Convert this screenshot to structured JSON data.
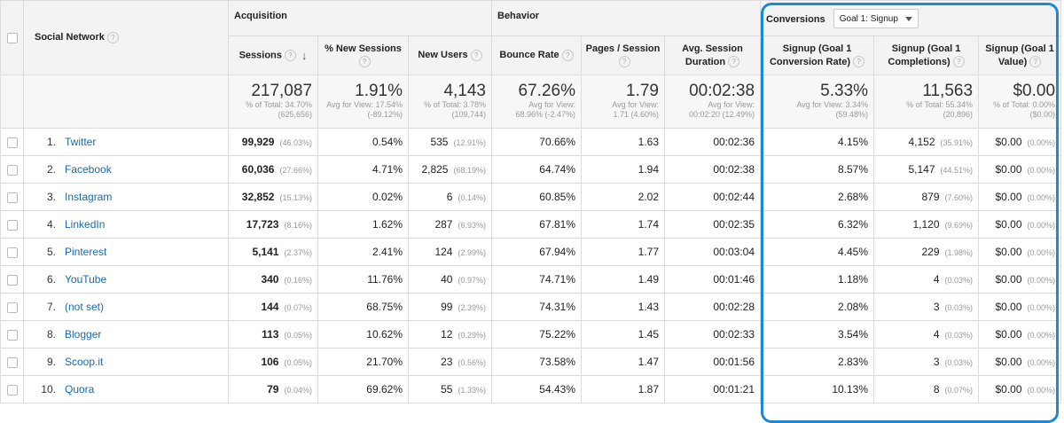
{
  "header": {
    "social_network": "Social Network",
    "groups": {
      "acquisition": "Acquisition",
      "behavior": "Behavior",
      "conversions": "Conversions"
    },
    "goal_select": "Goal 1: Signup",
    "columns": {
      "sessions": "Sessions",
      "new_sessions": "% New Sessions",
      "new_users": "New Users",
      "bounce_rate": "Bounce Rate",
      "pages_session": "Pages / Session",
      "avg_duration": "Avg. Session Duration",
      "conv_rate": "Signup (Goal 1 Conversion Rate)",
      "completions": "Signup (Goal 1 Completions)",
      "value": "Signup (Goal 1 Value)"
    }
  },
  "totals": {
    "sessions": {
      "value": "217,087",
      "l1": "% of Total: 34.70%",
      "l2": "(625,656)"
    },
    "new_sessions": {
      "value": "1.91%",
      "l1": "Avg for View: 17.54%",
      "l2": "(-89.12%)"
    },
    "new_users": {
      "value": "4,143",
      "l1": "% of Total: 3.78%",
      "l2": "(109,744)"
    },
    "bounce_rate": {
      "value": "67.26%",
      "l1": "Avg for View:",
      "l2": "68.96% (-2.47%)"
    },
    "pages_session": {
      "value": "1.79",
      "l1": "Avg for View:",
      "l2": "1.71 (4.60%)"
    },
    "avg_duration": {
      "value": "00:02:38",
      "l1": "Avg for View:",
      "l2": "00:02:20 (12.49%)"
    },
    "conv_rate": {
      "value": "5.33%",
      "l1": "Avg for View: 3.34%",
      "l2": "(59.48%)"
    },
    "completions": {
      "value": "11,563",
      "l1": "% of Total: 55.34%",
      "l2": "(20,896)"
    },
    "value": {
      "value": "$0.00",
      "l1": "% of Total: 0.00%",
      "l2": "($0.00)"
    }
  },
  "rows": [
    {
      "rank": "1.",
      "name": "Twitter",
      "sessions": "99,929",
      "sessions_pct": "(46.03%)",
      "new_sessions": "0.54%",
      "new_users": "535",
      "new_users_pct": "(12.91%)",
      "bounce": "70.66%",
      "pages": "1.63",
      "duration": "00:02:36",
      "conv_rate": "4.15%",
      "completions": "4,152",
      "completions_pct": "(35.91%)",
      "value": "$0.00",
      "value_pct": "(0.00%)"
    },
    {
      "rank": "2.",
      "name": "Facebook",
      "sessions": "60,036",
      "sessions_pct": "(27.66%)",
      "new_sessions": "4.71%",
      "new_users": "2,825",
      "new_users_pct": "(68.19%)",
      "bounce": "64.74%",
      "pages": "1.94",
      "duration": "00:02:38",
      "conv_rate": "8.57%",
      "completions": "5,147",
      "completions_pct": "(44.51%)",
      "value": "$0.00",
      "value_pct": "(0.00%)"
    },
    {
      "rank": "3.",
      "name": "Instagram",
      "sessions": "32,852",
      "sessions_pct": "(15.13%)",
      "new_sessions": "0.02%",
      "new_users": "6",
      "new_users_pct": "(0.14%)",
      "bounce": "60.85%",
      "pages": "2.02",
      "duration": "00:02:44",
      "conv_rate": "2.68%",
      "completions": "879",
      "completions_pct": "(7.60%)",
      "value": "$0.00",
      "value_pct": "(0.00%)"
    },
    {
      "rank": "4.",
      "name": "LinkedIn",
      "sessions": "17,723",
      "sessions_pct": "(8.16%)",
      "new_sessions": "1.62%",
      "new_users": "287",
      "new_users_pct": "(6.93%)",
      "bounce": "67.81%",
      "pages": "1.74",
      "duration": "00:02:35",
      "conv_rate": "6.32%",
      "completions": "1,120",
      "completions_pct": "(9.69%)",
      "value": "$0.00",
      "value_pct": "(0.00%)"
    },
    {
      "rank": "5.",
      "name": "Pinterest",
      "sessions": "5,141",
      "sessions_pct": "(2.37%)",
      "new_sessions": "2.41%",
      "new_users": "124",
      "new_users_pct": "(2.99%)",
      "bounce": "67.94%",
      "pages": "1.77",
      "duration": "00:03:04",
      "conv_rate": "4.45%",
      "completions": "229",
      "completions_pct": "(1.98%)",
      "value": "$0.00",
      "value_pct": "(0.00%)"
    },
    {
      "rank": "6.",
      "name": "YouTube",
      "sessions": "340",
      "sessions_pct": "(0.16%)",
      "new_sessions": "11.76%",
      "new_users": "40",
      "new_users_pct": "(0.97%)",
      "bounce": "74.71%",
      "pages": "1.49",
      "duration": "00:01:46",
      "conv_rate": "1.18%",
      "completions": "4",
      "completions_pct": "(0.03%)",
      "value": "$0.00",
      "value_pct": "(0.00%)"
    },
    {
      "rank": "7.",
      "name": "(not set)",
      "sessions": "144",
      "sessions_pct": "(0.07%)",
      "new_sessions": "68.75%",
      "new_users": "99",
      "new_users_pct": "(2.39%)",
      "bounce": "74.31%",
      "pages": "1.43",
      "duration": "00:02:28",
      "conv_rate": "2.08%",
      "completions": "3",
      "completions_pct": "(0.03%)",
      "value": "$0.00",
      "value_pct": "(0.00%)"
    },
    {
      "rank": "8.",
      "name": "Blogger",
      "sessions": "113",
      "sessions_pct": "(0.05%)",
      "new_sessions": "10.62%",
      "new_users": "12",
      "new_users_pct": "(0.29%)",
      "bounce": "75.22%",
      "pages": "1.45",
      "duration": "00:02:33",
      "conv_rate": "3.54%",
      "completions": "4",
      "completions_pct": "(0.03%)",
      "value": "$0.00",
      "value_pct": "(0.00%)"
    },
    {
      "rank": "9.",
      "name": "Scoop.it",
      "sessions": "106",
      "sessions_pct": "(0.05%)",
      "new_sessions": "21.70%",
      "new_users": "23",
      "new_users_pct": "(0.56%)",
      "bounce": "73.58%",
      "pages": "1.47",
      "duration": "00:01:56",
      "conv_rate": "2.83%",
      "completions": "3",
      "completions_pct": "(0.03%)",
      "value": "$0.00",
      "value_pct": "(0.00%)"
    },
    {
      "rank": "10.",
      "name": "Quora",
      "sessions": "79",
      "sessions_pct": "(0.04%)",
      "new_sessions": "69.62%",
      "new_users": "55",
      "new_users_pct": "(1.33%)",
      "bounce": "54.43%",
      "pages": "1.87",
      "duration": "00:01:21",
      "conv_rate": "10.13%",
      "completions": "8",
      "completions_pct": "(0.07%)",
      "value": "$0.00",
      "value_pct": "(0.00%)"
    }
  ],
  "colors": {
    "link": "#1a6aa8",
    "highlight": "#1a8ad8",
    "header_bg": "#f3f3f3"
  }
}
